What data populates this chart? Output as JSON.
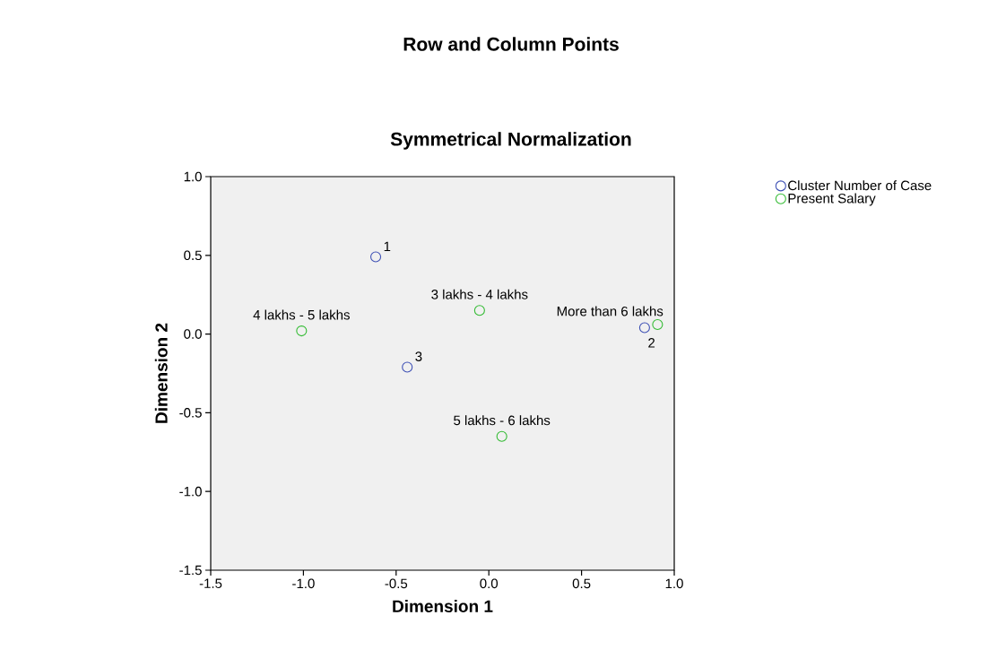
{
  "chart_data": {
    "type": "scatter",
    "title": "Row and Column Points",
    "subtitle": "Symmetrical Normalization",
    "xlabel": "Dimension 1",
    "ylabel": "Dimension 2",
    "series": [
      {
        "name": "Cluster Number of Case",
        "color": "#3f51b5",
        "x": [
          -0.61,
          0.84,
          -0.44
        ],
        "values": [
          0.49,
          0.04,
          -0.21
        ]
      },
      {
        "name": "Present Salary",
        "color": "#33bb33",
        "x": [
          -0.05,
          -1.01,
          0.07,
          0.91
        ],
        "values": [
          0.15,
          0.02,
          -0.65,
          0.06
        ]
      }
    ],
    "annotations": [
      {
        "text": "1",
        "x": -0.61,
        "y": 0.49
      },
      {
        "text": "3 lakhs - 4 lakhs",
        "x": -0.05,
        "y": 0.15
      },
      {
        "text": "4 lakhs - 5 lakhs",
        "x": -1.01,
        "y": 0.02
      },
      {
        "text": "More than 6 lakhs",
        "x": 0.91,
        "y": 0.06
      },
      {
        "text": "2",
        "x": 0.84,
        "y": 0.04
      },
      {
        "text": "3",
        "x": -0.44,
        "y": -0.21
      },
      {
        "text": "5 lakhs - 6 lakhs",
        "x": 0.07,
        "y": -0.65
      }
    ],
    "xlim": [
      -1.5,
      1.0
    ],
    "ylim": [
      -1.5,
      1.0
    ],
    "xticks": [
      {
        "value": -1.5,
        "label": "-1.5"
      },
      {
        "value": -1.0,
        "label": "-1.0"
      },
      {
        "value": -0.5,
        "label": "-0.5"
      },
      {
        "value": 0,
        "label": "0.0"
      },
      {
        "value": 0.5,
        "label": "0.5"
      },
      {
        "value": 1.0,
        "label": "1.0"
      }
    ],
    "yticks": [
      {
        "value": -1.5,
        "label": "-1.5"
      },
      {
        "value": -1.0,
        "label": "-1.0"
      },
      {
        "value": -0.5,
        "label": "-0.5"
      },
      {
        "value": 0,
        "label": "0.0"
      },
      {
        "value": 0.5,
        "label": "0.5"
      },
      {
        "value": 1.0,
        "label": "1.0"
      }
    ],
    "legend": "right",
    "marker": "circle"
  }
}
